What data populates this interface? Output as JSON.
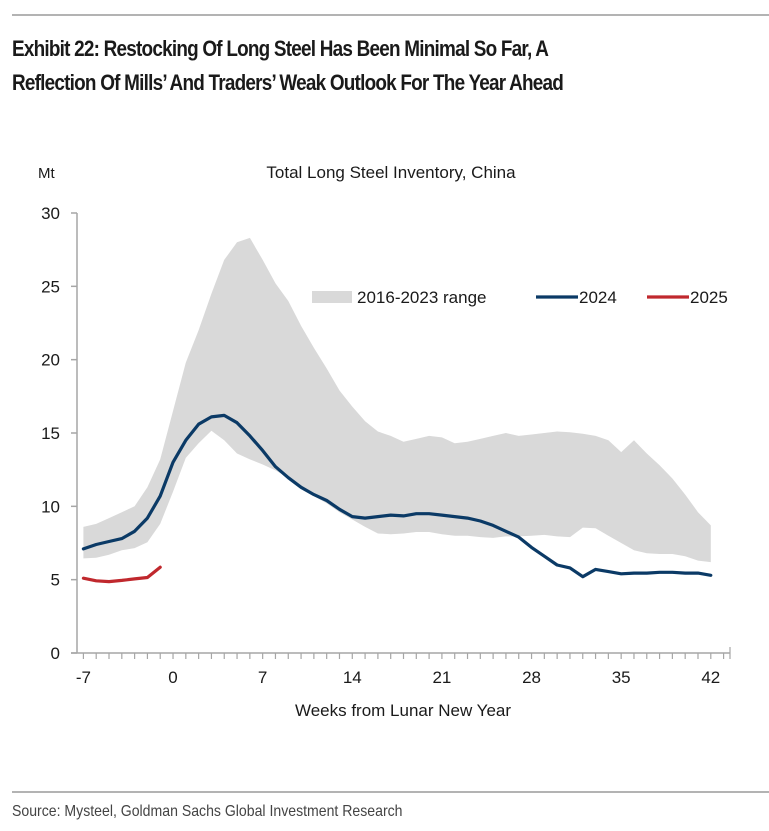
{
  "header": {
    "title_line1": "Exhibit 22: Restocking Of Long Steel Has Been Minimal So Far, A",
    "title_line2": "Reflection Of Mills’ And Traders’ Weak Outlook For The Year Ahead"
  },
  "footer": {
    "source": "Source: Mysteel, Goldman Sachs Global Investment Research"
  },
  "chart_data": {
    "type": "line",
    "title": "Total Long Steel Inventory, China",
    "xlabel": "Weeks from Lunar New Year",
    "ylabel": "Mt",
    "xlim": [
      -7.5,
      43.5
    ],
    "ylim": [
      0,
      30
    ],
    "xticks": [
      -7,
      0,
      7,
      14,
      21,
      28,
      35,
      42
    ],
    "yticks": [
      0,
      5,
      10,
      15,
      20,
      25,
      30
    ],
    "grid": false,
    "legend_position": "top-right",
    "x": [
      -7,
      -6,
      -5,
      -4,
      -3,
      -2,
      -1,
      0,
      1,
      2,
      3,
      4,
      5,
      6,
      7,
      8,
      9,
      10,
      11,
      12,
      13,
      14,
      15,
      16,
      17,
      18,
      19,
      20,
      21,
      22,
      23,
      24,
      25,
      26,
      27,
      28,
      29,
      30,
      31,
      32,
      33,
      34,
      35,
      36,
      37,
      38,
      39,
      40,
      41,
      42
    ],
    "band": {
      "name": "2016-2023 range",
      "color": "#d9d9d9",
      "upper": [
        8.6,
        8.8,
        9.2,
        9.6,
        10.0,
        11.3,
        13.2,
        16.5,
        19.8,
        22.0,
        24.5,
        26.8,
        28.0,
        28.3,
        26.8,
        25.2,
        24.0,
        22.3,
        20.8,
        19.4,
        17.9,
        16.8,
        15.8,
        15.1,
        14.8,
        14.4,
        14.6,
        14.8,
        14.7,
        14.3,
        14.4,
        14.6,
        14.8,
        15.0,
        14.8,
        14.9,
        15.0,
        15.1,
        15.05,
        14.95,
        14.8,
        14.5,
        13.7,
        14.5,
        13.6,
        12.8,
        11.9,
        10.8,
        9.6,
        8.7
      ],
      "lower": [
        6.45,
        6.5,
        6.7,
        7.0,
        7.15,
        7.55,
        8.8,
        11.0,
        13.3,
        14.3,
        15.15,
        14.5,
        13.6,
        13.2,
        12.85,
        12.45,
        11.95,
        11.25,
        10.7,
        10.2,
        9.6,
        9.1,
        8.6,
        8.15,
        8.1,
        8.15,
        8.25,
        8.25,
        8.1,
        8.0,
        8.0,
        7.9,
        7.85,
        7.95,
        7.95,
        8.0,
        8.05,
        7.95,
        7.9,
        8.55,
        8.5,
        8.0,
        7.5,
        7.0,
        6.8,
        6.75,
        6.75,
        6.6,
        6.3,
        6.2
      ]
    },
    "series": [
      {
        "name": "2024",
        "color": "#0b3a66",
        "x": [
          -7,
          -6,
          -5,
          -4,
          -3,
          -2,
          -1,
          0,
          1,
          2,
          3,
          4,
          5,
          6,
          7,
          8,
          9,
          10,
          11,
          12,
          13,
          14,
          15,
          16,
          17,
          18,
          19,
          20,
          21,
          22,
          23,
          24,
          25,
          26,
          27,
          28,
          29,
          30,
          31,
          32,
          33,
          34,
          35,
          36,
          37,
          38,
          39,
          40,
          41,
          42
        ],
        "values": [
          7.1,
          7.4,
          7.6,
          7.8,
          8.3,
          9.2,
          10.7,
          13.0,
          14.5,
          15.6,
          16.1,
          16.2,
          15.7,
          14.8,
          13.8,
          12.7,
          11.95,
          11.3,
          10.8,
          10.4,
          9.8,
          9.3,
          9.2,
          9.3,
          9.4,
          9.35,
          9.5,
          9.5,
          9.4,
          9.3,
          9.2,
          9.0,
          8.7,
          8.3,
          7.9,
          7.2,
          6.6,
          6.0,
          5.8,
          5.2,
          5.7,
          5.55,
          5.4,
          5.45,
          5.45,
          5.5,
          5.5,
          5.45,
          5.45,
          5.3
        ]
      },
      {
        "name": "2025",
        "color": "#c0282d",
        "x": [
          -7,
          -6,
          -5,
          -4,
          -3,
          -2,
          -1
        ],
        "values": [
          5.1,
          4.92,
          4.87,
          4.95,
          5.05,
          5.15,
          5.85
        ]
      }
    ]
  }
}
